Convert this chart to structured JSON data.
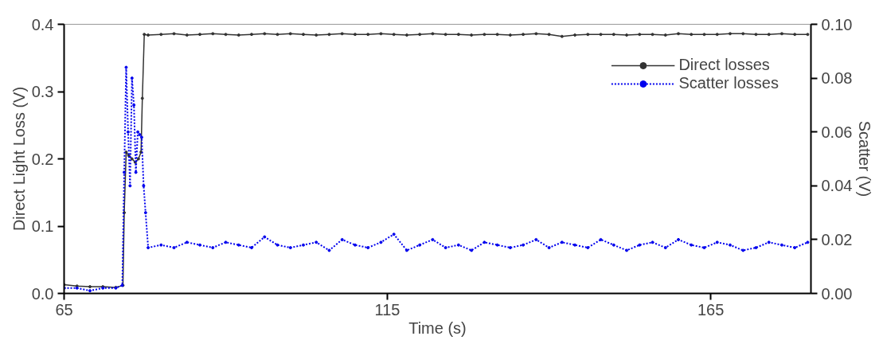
{
  "chart_data": {
    "type": "line",
    "xlabel": "Time (s)",
    "ylabel": "Direct Light Loss (V)",
    "y2label": "Scatter (V)",
    "xlim": [
      65,
      180.5
    ],
    "xticks": [
      65,
      115,
      165
    ],
    "ylim": [
      0,
      0.4
    ],
    "yticks": [
      {
        "value": 0,
        "label": "0.0"
      },
      {
        "value": 0.1,
        "label": "0.1"
      },
      {
        "value": 0.2,
        "label": "0.2"
      },
      {
        "value": 0.3,
        "label": "0.3"
      },
      {
        "value": 0.4,
        "label": "0.4"
      }
    ],
    "y2lim": [
      0,
      0.1
    ],
    "y2ticks": [
      {
        "value": 0,
        "label": "0.00"
      },
      {
        "value": 0.02,
        "label": "0.02"
      },
      {
        "value": 0.04,
        "label": "0.04"
      },
      {
        "value": 0.06,
        "label": "0.06"
      },
      {
        "value": 0.08,
        "label": "0.08"
      },
      {
        "value": 0.1,
        "label": "0.10"
      }
    ],
    "grid": false,
    "legend": "top right",
    "marker": "circle",
    "series": [
      {
        "name": "Direct losses",
        "color": "#333333",
        "line_style": "solid",
        "x": [
          65,
          67,
          69,
          71,
          73,
          74.1,
          74.3,
          74.6,
          75,
          75.5,
          76,
          76.5,
          76.9,
          77.1,
          77.4,
          78,
          80,
          82,
          84,
          86,
          88,
          90,
          92,
          94,
          96,
          98,
          100,
          102,
          104,
          106,
          108,
          110,
          112,
          114,
          116,
          118,
          120,
          122,
          124,
          126,
          128,
          130,
          132,
          134,
          136,
          138,
          140,
          142,
          144,
          146,
          148,
          150,
          152,
          154,
          156,
          158,
          160,
          162,
          164,
          166,
          168,
          170,
          172,
          174,
          176,
          178,
          180
        ],
        "values": [
          0.013,
          0.011,
          0.01,
          0.01,
          0.009,
          0.012,
          0.12,
          0.21,
          0.205,
          0.2,
          0.195,
          0.2,
          0.21,
          0.29,
          0.385,
          0.384,
          0.385,
          0.386,
          0.384,
          0.385,
          0.386,
          0.385,
          0.384,
          0.385,
          0.386,
          0.385,
          0.386,
          0.385,
          0.384,
          0.385,
          0.386,
          0.385,
          0.385,
          0.386,
          0.385,
          0.384,
          0.385,
          0.386,
          0.385,
          0.385,
          0.384,
          0.385,
          0.385,
          0.384,
          0.385,
          0.386,
          0.385,
          0.382,
          0.384,
          0.385,
          0.385,
          0.385,
          0.384,
          0.385,
          0.385,
          0.384,
          0.386,
          0.385,
          0.385,
          0.385,
          0.386,
          0.386,
          0.385,
          0.385,
          0.386,
          0.385,
          0.385
        ]
      },
      {
        "name": "Scatter losses",
        "color": "#0000ee",
        "line_style": "dotted",
        "axis": "y2",
        "x": [
          65,
          67,
          69,
          71,
          73,
          74,
          74.3,
          74.6,
          74.9,
          75.2,
          75.5,
          75.8,
          76.1,
          76.4,
          76.7,
          77,
          77.3,
          77.6,
          78,
          80,
          82,
          84,
          86,
          88,
          90,
          92,
          94,
          96,
          98,
          100,
          102,
          104,
          106,
          108,
          110,
          112,
          114,
          116,
          118,
          120,
          122,
          124,
          126,
          128,
          130,
          132,
          134,
          136,
          138,
          140,
          142,
          144,
          146,
          148,
          150,
          152,
          154,
          156,
          158,
          160,
          162,
          164,
          166,
          168,
          170,
          172,
          174,
          176,
          178,
          180
        ],
        "values": [
          0.002,
          0.002,
          0.001,
          0.002,
          0.002,
          0.003,
          0.045,
          0.084,
          0.06,
          0.04,
          0.08,
          0.07,
          0.045,
          0.06,
          0.059,
          0.058,
          0.04,
          0.03,
          0.017,
          0.018,
          0.017,
          0.019,
          0.018,
          0.017,
          0.019,
          0.018,
          0.017,
          0.021,
          0.018,
          0.017,
          0.018,
          0.019,
          0.016,
          0.02,
          0.018,
          0.017,
          0.019,
          0.022,
          0.016,
          0.018,
          0.02,
          0.017,
          0.018,
          0.016,
          0.019,
          0.018,
          0.017,
          0.018,
          0.02,
          0.017,
          0.019,
          0.018,
          0.017,
          0.02,
          0.018,
          0.016,
          0.018,
          0.019,
          0.017,
          0.02,
          0.018,
          0.017,
          0.019,
          0.018,
          0.016,
          0.017,
          0.019,
          0.018,
          0.017,
          0.019
        ]
      }
    ]
  }
}
